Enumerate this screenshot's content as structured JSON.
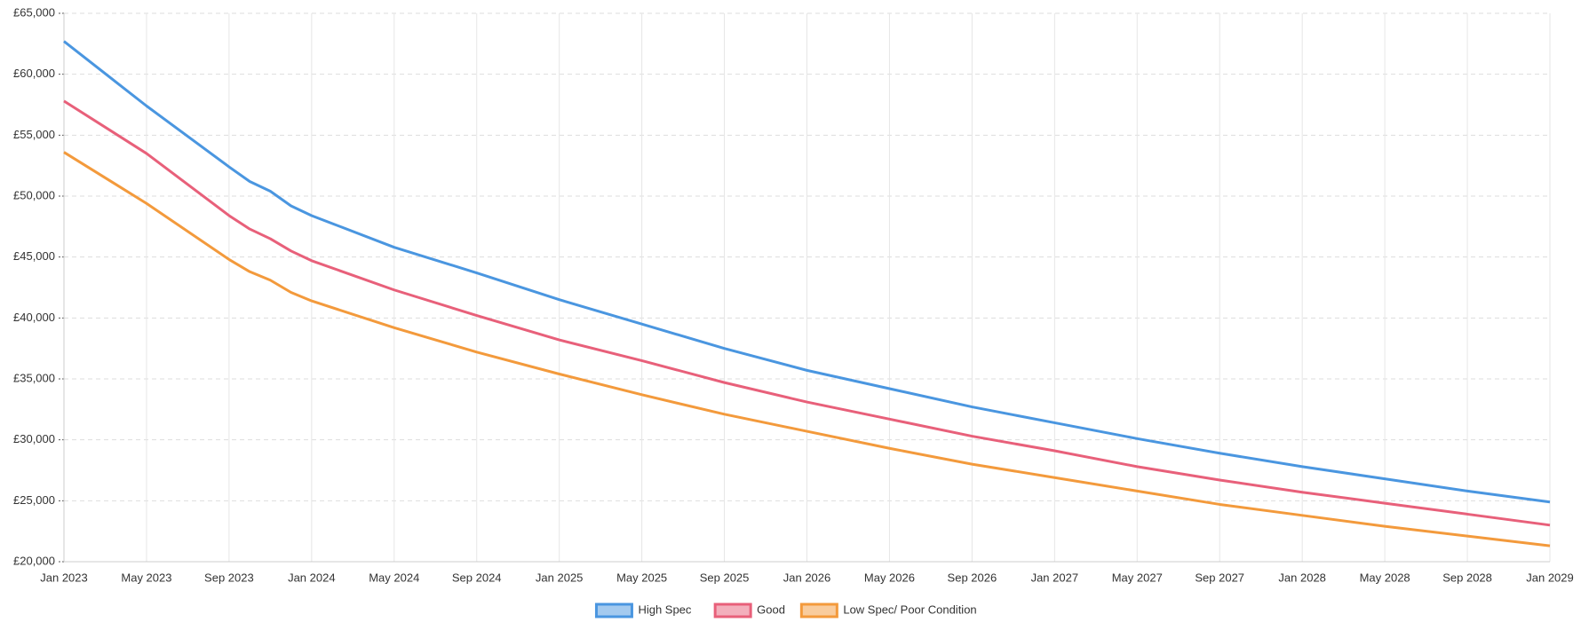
{
  "chart_data": {
    "type": "line",
    "x": [
      "2023-01",
      "2023-05",
      "2023-09",
      "2023-10",
      "2023-11",
      "2023-12",
      "2024-01",
      "2024-05",
      "2024-09",
      "2025-01",
      "2025-05",
      "2025-09",
      "2026-01",
      "2026-05",
      "2026-09",
      "2027-01",
      "2027-05",
      "2027-09",
      "2028-01",
      "2028-05",
      "2028-09",
      "2029-01"
    ],
    "series": [
      {
        "name": "High Spec",
        "color": "#4a96e0",
        "values": [
          62700,
          57400,
          52400,
          51200,
          50400,
          49200,
          48400,
          45800,
          43700,
          41500,
          39500,
          37500,
          35700,
          34200,
          32700,
          31400,
          30100,
          28900,
          27800,
          26800,
          25800,
          24900
        ]
      },
      {
        "name": "Good",
        "color": "#e8607a",
        "values": [
          57800,
          53500,
          48400,
          47300,
          46500,
          45500,
          44700,
          42300,
          40200,
          38200,
          36500,
          34700,
          33100,
          31700,
          30300,
          29100,
          27800,
          26700,
          25700,
          24800,
          23900,
          23000
        ]
      },
      {
        "name": "Low Spec/ Poor Condition",
        "color": "#f39a3c",
        "values": [
          53600,
          49400,
          44800,
          43800,
          43100,
          42100,
          41400,
          39200,
          37200,
          35400,
          33700,
          32100,
          30700,
          29300,
          28000,
          26900,
          25800,
          24700,
          23800,
          22900,
          22100,
          21300
        ]
      }
    ],
    "xlim": [
      "2023-01",
      "2029-01"
    ],
    "xticks": [
      {
        "value": "2023-01",
        "label": "Jan 2023"
      },
      {
        "value": "2023-05",
        "label": "May 2023"
      },
      {
        "value": "2023-09",
        "label": "Sep 2023"
      },
      {
        "value": "2024-01",
        "label": "Jan 2024"
      },
      {
        "value": "2024-05",
        "label": "May 2024"
      },
      {
        "value": "2024-09",
        "label": "Sep 2024"
      },
      {
        "value": "2025-01",
        "label": "Jan 2025"
      },
      {
        "value": "2025-05",
        "label": "May 2025"
      },
      {
        "value": "2025-09",
        "label": "Sep 2025"
      },
      {
        "value": "2026-01",
        "label": "Jan 2026"
      },
      {
        "value": "2026-05",
        "label": "May 2026"
      },
      {
        "value": "2026-09",
        "label": "Sep 2026"
      },
      {
        "value": "2027-01",
        "label": "Jan 2027"
      },
      {
        "value": "2027-05",
        "label": "May 2027"
      },
      {
        "value": "2027-09",
        "label": "Sep 2027"
      },
      {
        "value": "2028-01",
        "label": "Jan 2028"
      },
      {
        "value": "2028-05",
        "label": "May 2028"
      },
      {
        "value": "2028-09",
        "label": "Sep 2028"
      },
      {
        "value": "2029-01",
        "label": "Jan 2029"
      }
    ],
    "ylim": [
      20000,
      65000
    ],
    "yticks": [
      {
        "value": 20000,
        "label": "£20,000"
      },
      {
        "value": 25000,
        "label": "£25,000"
      },
      {
        "value": 30000,
        "label": "£30,000"
      },
      {
        "value": 35000,
        "label": "£35,000"
      },
      {
        "value": 40000,
        "label": "£40,000"
      },
      {
        "value": 45000,
        "label": "£45,000"
      },
      {
        "value": 50000,
        "label": "£50,000"
      },
      {
        "value": 55000,
        "label": "£55,000"
      },
      {
        "value": 60000,
        "label": "£60,000"
      },
      {
        "value": 65000,
        "label": "£65,000"
      }
    ],
    "grid": true,
    "legend": "bottom"
  }
}
